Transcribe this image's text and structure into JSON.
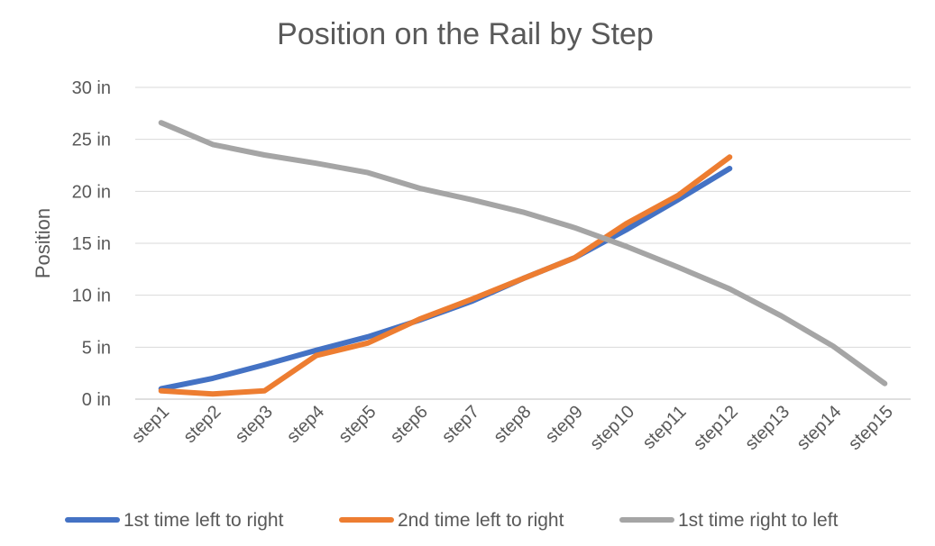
{
  "chart_data": {
    "type": "line",
    "title": "Position on the Rail by Step",
    "xlabel": "",
    "ylabel": "Position",
    "ylim": [
      0,
      30
    ],
    "y_unit": " in",
    "y_ticks": [
      "0 in",
      "5 in",
      "10 in",
      "15 in",
      "20 in",
      "25 in",
      "30 in"
    ],
    "categories": [
      "step1",
      "step2",
      "step3",
      "step4",
      "step5",
      "step6",
      "step7",
      "step8",
      "step9",
      "step10",
      "step11",
      "step12",
      "step13",
      "step14",
      "step15"
    ],
    "grid": "horizontal",
    "legend_position": "bottom",
    "series": [
      {
        "name": "1st time left to right",
        "color": "#4472C4",
        "values": [
          1.0,
          2.0,
          3.3,
          4.7,
          6.0,
          7.6,
          9.4,
          11.6,
          13.6,
          16.3,
          19.2,
          22.2,
          null,
          null,
          null
        ]
      },
      {
        "name": "2nd time left to right",
        "color": "#ED7D31",
        "values": [
          0.8,
          0.5,
          0.8,
          4.2,
          5.4,
          7.7,
          9.6,
          11.6,
          13.6,
          16.9,
          19.6,
          23.3,
          null,
          null,
          null
        ]
      },
      {
        "name": "1st time right to left",
        "color": "#A5A5A5",
        "values": [
          26.6,
          24.5,
          23.5,
          22.7,
          21.8,
          20.3,
          19.2,
          18.0,
          16.5,
          14.7,
          12.7,
          10.6,
          8.0,
          5.1,
          1.5
        ]
      }
    ]
  }
}
